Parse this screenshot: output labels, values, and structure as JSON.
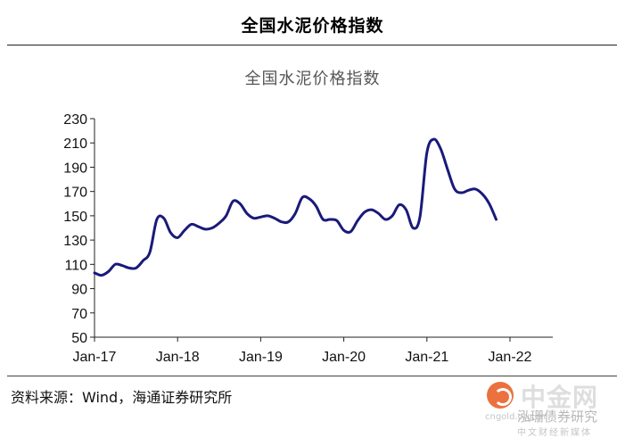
{
  "header": {
    "title": "全国水泥价格指数"
  },
  "chart_data": {
    "type": "line",
    "title": "全国水泥价格指数",
    "xlabel": "",
    "ylabel": "",
    "ylim": [
      50,
      230
    ],
    "yticks": [
      50,
      70,
      90,
      110,
      130,
      150,
      170,
      190,
      210,
      230
    ],
    "xticks": [
      "Jan-17",
      "Jan-18",
      "Jan-19",
      "Jan-20",
      "Jan-21",
      "Jan-22"
    ],
    "grid": false,
    "legend": "none",
    "line_color": "#1a1a7a",
    "x_start": "2017-01",
    "x_step": "month",
    "values": [
      103,
      101,
      104,
      110,
      109,
      107,
      107,
      113,
      120,
      147,
      148,
      136,
      132,
      138,
      143,
      141,
      139,
      140,
      144,
      150,
      162,
      160,
      152,
      148,
      149,
      150,
      148,
      145,
      145,
      152,
      165,
      164,
      158,
      147,
      147,
      146,
      138,
      137,
      146,
      153,
      155,
      152,
      147,
      150,
      159,
      155,
      140,
      149,
      202,
      213,
      205,
      188,
      172,
      169,
      171,
      172,
      168,
      160,
      147
    ]
  },
  "footer": {
    "source": "资料来源：Wind，海通证券研究所"
  },
  "watermark": {
    "main": "中金网",
    "sub": "泓珊债券研究",
    "tag": "cngold.org.cn",
    "tag2": "中文财经新媒体"
  }
}
